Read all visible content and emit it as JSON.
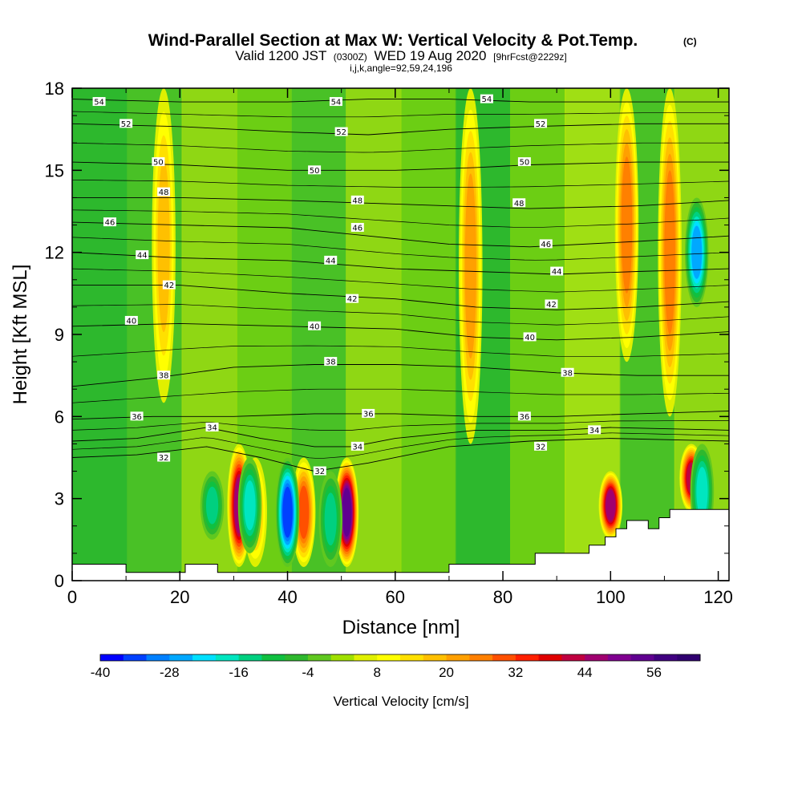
{
  "chart_data": {
    "type": "heatmap",
    "title": "Wind-Parallel Section at Max W: Vertical Velocity & Pot.Temp.",
    "title_mark": "(C)",
    "subtitle_valid": "Valid 1200 JST",
    "subtitle_utc": "(0300Z)",
    "subtitle_date": "WED 19 Aug 2020",
    "subtitle_fcst": "[9hrFcst@2229z]",
    "subtitle_ijk": "i,j,k,angle=92,59,24,196",
    "xlabel": "Distance [nm]",
    "ylabel": "Height [Kft MSL]",
    "xlim": [
      0,
      122
    ],
    "ylim": [
      0,
      18
    ],
    "x_ticks": [
      "0",
      "20",
      "40",
      "60",
      "80",
      "100",
      "120"
    ],
    "y_ticks": [
      "0",
      "3",
      "6",
      "9",
      "12",
      "15",
      "18"
    ],
    "colorbar": {
      "label": "Vertical Velocity [cm/s]",
      "min": -40,
      "max": 64,
      "step": 4,
      "tick_labels": [
        "-40",
        "-28",
        "-16",
        "-4",
        "8",
        "20",
        "32",
        "44",
        "56"
      ],
      "colors": [
        "#0000ff",
        "#0040ff",
        "#0080ff",
        "#00a8ff",
        "#00e0ff",
        "#00e6c0",
        "#00d080",
        "#10c040",
        "#2eb82e",
        "#60c820",
        "#a0e000",
        "#e0f000",
        "#ffff00",
        "#ffe000",
        "#ffc000",
        "#ffa000",
        "#ff8000",
        "#ff5000",
        "#ff2000",
        "#e00000",
        "#c00040",
        "#a00070",
        "#800090",
        "#600090",
        "#400080",
        "#300070"
      ]
    },
    "vertical_velocity_updrafts": [
      {
        "x": 17,
        "y_range": [
          6.5,
          18
        ],
        "peak": 14
      },
      {
        "x": 31,
        "y_range": [
          0.5,
          5
        ],
        "peak": 44
      },
      {
        "x": 34,
        "y_range": [
          0.5,
          4.5
        ],
        "peak": 16
      },
      {
        "x": 43,
        "y_range": [
          0.5,
          4.5
        ],
        "peak": 28
      },
      {
        "x": 51,
        "y_range": [
          0.5,
          4.5
        ],
        "peak": 52
      },
      {
        "x": 74,
        "y_range": [
          5,
          18
        ],
        "peak": 20
      },
      {
        "x": 100,
        "y_range": [
          1.5,
          4
        ],
        "peak": 44
      },
      {
        "x": 103,
        "y_range": [
          8,
          18
        ],
        "peak": 24
      },
      {
        "x": 111,
        "y_range": [
          6,
          18
        ],
        "peak": 24
      },
      {
        "x": 115,
        "y_range": [
          2.5,
          5
        ],
        "peak": 40
      }
    ],
    "vertical_velocity_downdrafts": [
      {
        "x": 26,
        "y_range": [
          1.5,
          4
        ],
        "peak": -16
      },
      {
        "x": 33,
        "y_range": [
          1,
          4.5
        ],
        "peak": -20
      },
      {
        "x": 40,
        "y_range": [
          0.5,
          4.5
        ],
        "peak": -36
      },
      {
        "x": 48,
        "y_range": [
          0.5,
          4
        ],
        "peak": -16
      },
      {
        "x": 116,
        "y_range": [
          10,
          14
        ],
        "peak": -28
      },
      {
        "x": 117,
        "y_range": [
          1.5,
          5
        ],
        "peak": -20
      }
    ],
    "pot_temp_contours": [
      {
        "label": "32",
        "points": [
          [
            0,
            4.5
          ],
          [
            12,
            4.6
          ],
          [
            25,
            4.9
          ],
          [
            35,
            4.5
          ],
          [
            45,
            4.0
          ],
          [
            55,
            4.3
          ],
          [
            70,
            4.9
          ],
          [
            85,
            5.1
          ],
          [
            100,
            5.2
          ],
          [
            122,
            5.1
          ]
        ]
      },
      {
        "label": "34",
        "points": [
          [
            0,
            5.1
          ],
          [
            12,
            5.2
          ],
          [
            25,
            5.6
          ],
          [
            35,
            5.2
          ],
          [
            45,
            4.9
          ],
          [
            52,
            4.9
          ],
          [
            60,
            5.2
          ],
          [
            75,
            5.5
          ],
          [
            90,
            5.5
          ],
          [
            100,
            5.6
          ],
          [
            122,
            5.5
          ]
        ]
      },
      {
        "label": "36",
        "points": [
          [
            0,
            5.9
          ],
          [
            15,
            6.0
          ],
          [
            30,
            6.0
          ],
          [
            45,
            6.1
          ],
          [
            60,
            6.1
          ],
          [
            75,
            6.0
          ],
          [
            90,
            6.0
          ],
          [
            105,
            6.1
          ],
          [
            122,
            6.2
          ]
        ]
      },
      {
        "label": "38",
        "points": [
          [
            0,
            7.1
          ],
          [
            15,
            7.4
          ],
          [
            30,
            7.8
          ],
          [
            45,
            7.9
          ],
          [
            60,
            7.9
          ],
          [
            75,
            7.8
          ],
          [
            90,
            7.6
          ],
          [
            105,
            7.5
          ],
          [
            122,
            7.5
          ]
        ]
      },
      {
        "label": "40",
        "points": [
          [
            0,
            9.3
          ],
          [
            20,
            9.4
          ],
          [
            40,
            9.3
          ],
          [
            60,
            9.2
          ],
          [
            75,
            8.9
          ],
          [
            90,
            8.8
          ],
          [
            105,
            8.9
          ],
          [
            122,
            9.1
          ]
        ]
      },
      {
        "label": "42",
        "points": [
          [
            0,
            10.8
          ],
          [
            20,
            10.8
          ],
          [
            40,
            10.5
          ],
          [
            60,
            10.3
          ],
          [
            75,
            10.0
          ],
          [
            90,
            9.9
          ],
          [
            105,
            10.0
          ],
          [
            122,
            10.2
          ]
        ]
      },
      {
        "label": "44",
        "points": [
          [
            0,
            12.0
          ],
          [
            20,
            11.8
          ],
          [
            40,
            11.7
          ],
          [
            60,
            11.4
          ],
          [
            75,
            11.3
          ],
          [
            90,
            11.2
          ],
          [
            105,
            11.3
          ],
          [
            122,
            11.4
          ]
        ]
      },
      {
        "label": "46",
        "points": [
          [
            0,
            13.1
          ],
          [
            20,
            13.0
          ],
          [
            40,
            12.9
          ],
          [
            55,
            12.6
          ],
          [
            70,
            12.3
          ],
          [
            85,
            12.2
          ],
          [
            105,
            12.4
          ],
          [
            122,
            12.6
          ]
        ]
      },
      {
        "label": "48",
        "points": [
          [
            0,
            14.0
          ],
          [
            20,
            14.0
          ],
          [
            40,
            13.9
          ],
          [
            55,
            13.8
          ],
          [
            70,
            13.7
          ],
          [
            85,
            13.6
          ],
          [
            105,
            13.7
          ],
          [
            122,
            13.9
          ]
        ]
      },
      {
        "label": "50",
        "points": [
          [
            0,
            15.3
          ],
          [
            20,
            15.2
          ],
          [
            40,
            15.0
          ],
          [
            60,
            15.0
          ],
          [
            75,
            15.1
          ],
          [
            85,
            15.2
          ],
          [
            105,
            15.3
          ],
          [
            122,
            15.3
          ]
        ]
      },
      {
        "label": "52",
        "points": [
          [
            0,
            16.7
          ],
          [
            20,
            16.6
          ],
          [
            40,
            16.4
          ],
          [
            55,
            16.3
          ],
          [
            70,
            16.5
          ],
          [
            85,
            16.6
          ],
          [
            105,
            16.7
          ],
          [
            122,
            16.7
          ]
        ]
      },
      {
        "label": "54",
        "points": [
          [
            0,
            17.6
          ],
          [
            20,
            17.5
          ],
          [
            40,
            17.5
          ],
          [
            55,
            17.6
          ],
          [
            70,
            17.6
          ],
          [
            85,
            17.5
          ],
          [
            105,
            17.5
          ],
          [
            122,
            17.5
          ]
        ]
      }
    ],
    "contour_label_positions": [
      {
        "label": "54",
        "x": 5,
        "y": 17.5
      },
      {
        "label": "54",
        "x": 49,
        "y": 17.5
      },
      {
        "label": "54",
        "x": 77,
        "y": 17.6
      },
      {
        "label": "52",
        "x": 10,
        "y": 16.7
      },
      {
        "label": "52",
        "x": 50,
        "y": 16.4
      },
      {
        "label": "52",
        "x": 87,
        "y": 16.7
      },
      {
        "label": "50",
        "x": 16,
        "y": 15.3
      },
      {
        "label": "50",
        "x": 45,
        "y": 15.0
      },
      {
        "label": "50",
        "x": 84,
        "y": 15.3
      },
      {
        "label": "48",
        "x": 17,
        "y": 14.2
      },
      {
        "label": "48",
        "x": 53,
        "y": 13.9
      },
      {
        "label": "48",
        "x": 83,
        "y": 13.8
      },
      {
        "label": "46",
        "x": 7,
        "y": 13.1
      },
      {
        "label": "46",
        "x": 53,
        "y": 12.9
      },
      {
        "label": "46",
        "x": 88,
        "y": 12.3
      },
      {
        "label": "44",
        "x": 13,
        "y": 11.9
      },
      {
        "label": "44",
        "x": 48,
        "y": 11.7
      },
      {
        "label": "44",
        "x": 90,
        "y": 11.3
      },
      {
        "label": "42",
        "x": 18,
        "y": 10.8
      },
      {
        "label": "42",
        "x": 52,
        "y": 10.3
      },
      {
        "label": "42",
        "x": 89,
        "y": 10.1
      },
      {
        "label": "40",
        "x": 11,
        "y": 9.5
      },
      {
        "label": "40",
        "x": 45,
        "y": 9.3
      },
      {
        "label": "40",
        "x": 85,
        "y": 8.9
      },
      {
        "label": "38",
        "x": 17,
        "y": 7.5
      },
      {
        "label": "38",
        "x": 48,
        "y": 8.0
      },
      {
        "label": "38",
        "x": 92,
        "y": 7.6
      },
      {
        "label": "36",
        "x": 12,
        "y": 6.0
      },
      {
        "label": "36",
        "x": 55,
        "y": 6.1
      },
      {
        "label": "36",
        "x": 84,
        "y": 6.0
      },
      {
        "label": "34",
        "x": 26,
        "y": 5.6
      },
      {
        "label": "34",
        "x": 53,
        "y": 4.9
      },
      {
        "label": "34",
        "x": 97,
        "y": 5.5
      },
      {
        "label": "32",
        "x": 17,
        "y": 4.5
      },
      {
        "label": "32",
        "x": 46,
        "y": 4.0
      },
      {
        "label": "32",
        "x": 87,
        "y": 4.9
      }
    ],
    "terrain": [
      [
        0,
        0.6
      ],
      [
        10,
        0.6
      ],
      [
        10,
        0.3
      ],
      [
        21,
        0.3
      ],
      [
        21,
        0.6
      ],
      [
        27,
        0.6
      ],
      [
        27,
        0.3
      ],
      [
        70,
        0.3
      ],
      [
        70,
        0.6
      ],
      [
        86,
        0.6
      ],
      [
        86,
        1.0
      ],
      [
        96,
        1.0
      ],
      [
        96,
        1.3
      ],
      [
        99,
        1.3
      ],
      [
        99,
        1.6
      ],
      [
        101,
        1.6
      ],
      [
        101,
        1.9
      ],
      [
        103,
        1.9
      ],
      [
        103,
        2.2
      ],
      [
        107,
        2.2
      ],
      [
        107,
        1.9
      ],
      [
        109,
        1.9
      ],
      [
        109,
        2.3
      ],
      [
        111,
        2.3
      ],
      [
        111,
        2.6
      ],
      [
        122,
        2.6
      ]
    ]
  }
}
